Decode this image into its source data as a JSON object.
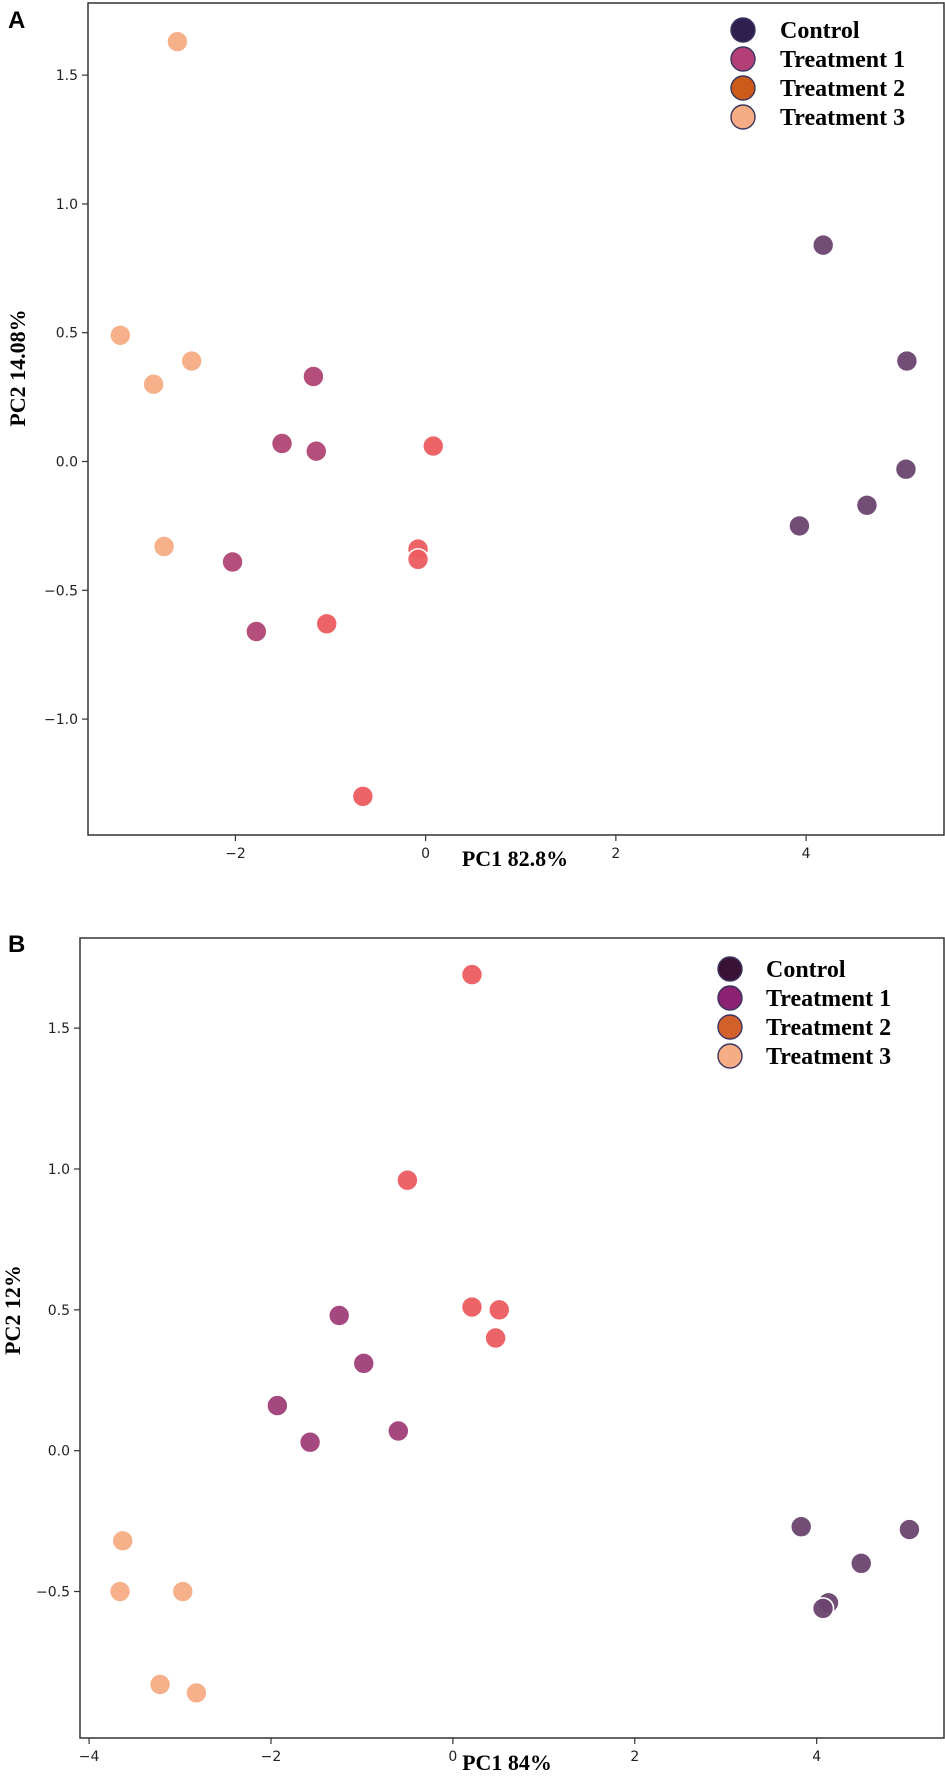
{
  "chart_data": [
    {
      "type": "scatter",
      "panel_label": "A",
      "xlabel": "PC1 82.8%",
      "ylabel": "PC2  14.08%",
      "xlim": [
        -3.55,
        5.45
      ],
      "ylim": [
        -1.45,
        1.78
      ],
      "xticks": [
        -2,
        0,
        2,
        4
      ],
      "xtick_labels": [
        "−2",
        "0",
        "2",
        "4"
      ],
      "yticks": [
        1.5,
        1.0,
        0.5,
        0.0,
        -0.5,
        -1.0
      ],
      "ytick_labels": [
        "1.5",
        "1.0",
        "0.5",
        "0.0",
        "−0.5",
        "−1.0"
      ],
      "legend_position": "top-right",
      "series": [
        {
          "name": "Control",
          "legend_color": "#2e1f4e",
          "point_color": "#6a4470",
          "points": [
            [
              4.18,
              0.84
            ],
            [
              5.06,
              0.39
            ],
            [
              5.05,
              -0.03
            ],
            [
              4.64,
              -0.17
            ],
            [
              3.93,
              -0.25
            ]
          ]
        },
        {
          "name": "Treatment 1",
          "legend_color": "#b43f78",
          "point_color": "#b04474",
          "points": [
            [
              -1.18,
              0.33
            ],
            [
              -1.51,
              0.07
            ],
            [
              -1.15,
              0.04
            ],
            [
              -2.03,
              -0.39
            ],
            [
              -1.78,
              -0.66
            ]
          ]
        },
        {
          "name": "Treatment 2",
          "legend_color": "#cc5a18",
          "point_color": "#ec5c60",
          "points": [
            [
              0.08,
              0.06
            ],
            [
              -0.08,
              -0.34
            ],
            [
              -0.08,
              -0.38
            ],
            [
              -1.04,
              -0.63
            ],
            [
              -0.66,
              -1.3
            ]
          ]
        },
        {
          "name": "Treatment 3",
          "legend_color": "#f6ad85",
          "point_color": "#f6ad85",
          "points": [
            [
              -2.61,
              1.63
            ],
            [
              -3.21,
              0.49
            ],
            [
              -2.46,
              0.39
            ],
            [
              -2.86,
              0.3
            ],
            [
              -2.75,
              -0.33
            ]
          ]
        }
      ]
    },
    {
      "type": "scatter",
      "panel_label": "B",
      "xlabel": "PC1 84%",
      "ylabel": "PC2 12%",
      "xlim": [
        -4.1,
        5.4
      ],
      "ylim": [
        -1.02,
        1.82
      ],
      "xticks": [
        -4,
        -2,
        0,
        2,
        4
      ],
      "xtick_labels": [
        "−4",
        "−2",
        "0",
        "2",
        "4"
      ],
      "yticks": [
        1.5,
        1.0,
        0.5,
        0.0,
        -0.5
      ],
      "ytick_labels": [
        "1.5",
        "1.0",
        "0.5",
        "0.0",
        "−0.5"
      ],
      "legend_position": "top-right",
      "series": [
        {
          "name": "Control",
          "legend_color": "#3a1236",
          "point_color": "#6a4470",
          "points": [
            [
              3.83,
              -0.27
            ],
            [
              4.49,
              -0.4
            ],
            [
              4.13,
              -0.54
            ],
            [
              4.07,
              -0.56
            ],
            [
              5.02,
              -0.28
            ]
          ]
        },
        {
          "name": "Treatment 1",
          "legend_color": "#8c2172",
          "point_color": "#a03e78",
          "points": [
            [
              -1.25,
              0.48
            ],
            [
              -0.98,
              0.31
            ],
            [
              -1.93,
              0.16
            ],
            [
              -1.57,
              0.03
            ],
            [
              -0.6,
              0.07
            ]
          ]
        },
        {
          "name": "Treatment 2",
          "legend_color": "#d2602a",
          "point_color": "#ec5c60",
          "points": [
            [
              0.21,
              1.69
            ],
            [
              -0.5,
              0.96
            ],
            [
              0.21,
              0.51
            ],
            [
              0.51,
              0.5
            ],
            [
              0.47,
              0.4
            ]
          ]
        },
        {
          "name": "Treatment 3",
          "legend_color": "#f6ad85",
          "point_color": "#f6ad85",
          "points": [
            [
              -3.63,
              -0.32
            ],
            [
              -3.66,
              -0.5
            ],
            [
              -2.97,
              -0.5
            ],
            [
              -3.22,
              -0.83
            ],
            [
              -2.82,
              -0.86
            ]
          ]
        }
      ]
    }
  ]
}
